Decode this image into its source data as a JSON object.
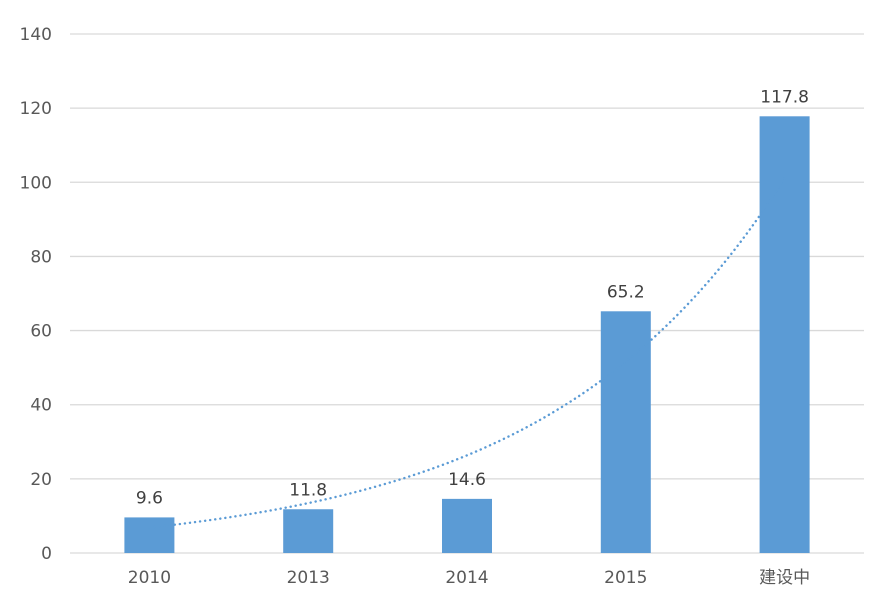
{
  "chart_data": {
    "type": "bar",
    "title": "",
    "xlabel": "",
    "ylabel": "",
    "categories": [
      "2010",
      "2013",
      "2014",
      "2015",
      "建设中"
    ],
    "values": [
      9.6,
      11.8,
      14.6,
      65.2,
      117.8
    ],
    "value_labels": [
      "9.6",
      "11.8",
      "14.6",
      "65.2",
      "117.8"
    ],
    "ylim": [
      0,
      140
    ],
    "yticks": [
      "0",
      "20",
      "40",
      "60",
      "80",
      "100",
      "120",
      "140"
    ],
    "grid": true,
    "legend": "none",
    "trendline": {
      "type": "exponential",
      "style": "dotted"
    },
    "colors": {
      "bar": "#5b9bd5",
      "trendline": "#5b9bd5",
      "grid": "#d9d9d9",
      "text": "#595959"
    }
  }
}
